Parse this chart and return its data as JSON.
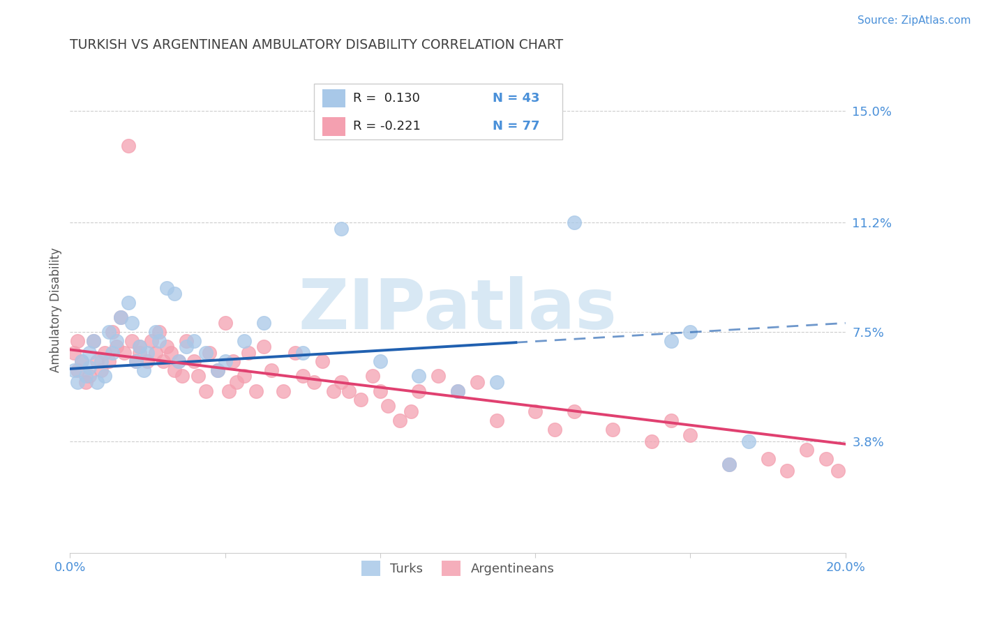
{
  "title": "TURKISH VS ARGENTINEAN AMBULATORY DISABILITY CORRELATION CHART",
  "source_text": "Source: ZipAtlas.com",
  "ylabel": "Ambulatory Disability",
  "legend_R_turks": "R =  0.130",
  "legend_R_arg": "R = -0.221",
  "legend_N_turks": "N = 43",
  "legend_N_arg": "N = 77",
  "legend_label_turks": "Turks",
  "legend_label_arg": "Argentineans",
  "xlim": [
    0.0,
    0.2
  ],
  "ylim": [
    0.0,
    0.165
  ],
  "yticks": [
    0.038,
    0.075,
    0.112,
    0.15
  ],
  "ytick_labels": [
    "3.8%",
    "7.5%",
    "11.2%",
    "15.0%"
  ],
  "xticks": [
    0.0,
    0.04,
    0.08,
    0.12,
    0.16,
    0.2
  ],
  "xtick_labels": [
    "0.0%",
    "",
    "",
    "",
    "",
    "20.0%"
  ],
  "color_turks": "#A8C8E8",
  "color_argentineans": "#F4A0B0",
  "color_trend_turks": "#2060B0",
  "color_trend_arg": "#E04070",
  "background_color": "#ffffff",
  "grid_color": "#cccccc",
  "axis_color": "#4a90d9",
  "title_color": "#404040",
  "watermark_text": "ZIPatlas",
  "watermark_color": "#d8e8f4",
  "trend_blue_x0": 0.0,
  "trend_blue_x1": 0.2,
  "trend_blue_y0": 0.0625,
  "trend_blue_y1": 0.078,
  "trend_blue_solid_end": 0.115,
  "trend_pink_x0": 0.0,
  "trend_pink_x1": 0.2,
  "trend_pink_y0": 0.069,
  "trend_pink_y1": 0.037,
  "turks_x": [
    0.001,
    0.002,
    0.003,
    0.004,
    0.005,
    0.005,
    0.006,
    0.007,
    0.008,
    0.009,
    0.01,
    0.011,
    0.012,
    0.013,
    0.015,
    0.016,
    0.017,
    0.018,
    0.019,
    0.02,
    0.022,
    0.023,
    0.025,
    0.027,
    0.028,
    0.03,
    0.032,
    0.035,
    0.038,
    0.04,
    0.045,
    0.05,
    0.06,
    0.07,
    0.08,
    0.09,
    0.1,
    0.11,
    0.13,
    0.155,
    0.16,
    0.17,
    0.175
  ],
  "turks_y": [
    0.062,
    0.058,
    0.065,
    0.06,
    0.063,
    0.068,
    0.072,
    0.058,
    0.065,
    0.06,
    0.075,
    0.068,
    0.072,
    0.08,
    0.085,
    0.078,
    0.065,
    0.07,
    0.062,
    0.068,
    0.075,
    0.072,
    0.09,
    0.088,
    0.065,
    0.07,
    0.072,
    0.068,
    0.062,
    0.065,
    0.072,
    0.078,
    0.068,
    0.11,
    0.065,
    0.06,
    0.055,
    0.058,
    0.112,
    0.072,
    0.075,
    0.03,
    0.038
  ],
  "arg_x": [
    0.001,
    0.002,
    0.002,
    0.003,
    0.004,
    0.005,
    0.006,
    0.007,
    0.008,
    0.009,
    0.01,
    0.011,
    0.012,
    0.013,
    0.014,
    0.015,
    0.016,
    0.017,
    0.018,
    0.018,
    0.02,
    0.021,
    0.022,
    0.023,
    0.024,
    0.025,
    0.026,
    0.027,
    0.028,
    0.029,
    0.03,
    0.032,
    0.033,
    0.035,
    0.036,
    0.038,
    0.04,
    0.041,
    0.042,
    0.043,
    0.045,
    0.046,
    0.048,
    0.05,
    0.052,
    0.055,
    0.058,
    0.06,
    0.063,
    0.065,
    0.068,
    0.07,
    0.072,
    0.075,
    0.078,
    0.08,
    0.082,
    0.085,
    0.088,
    0.09,
    0.095,
    0.1,
    0.105,
    0.11,
    0.12,
    0.125,
    0.13,
    0.14,
    0.15,
    0.155,
    0.16,
    0.17,
    0.18,
    0.185,
    0.19,
    0.195,
    0.198
  ],
  "arg_y": [
    0.068,
    0.062,
    0.072,
    0.065,
    0.058,
    0.06,
    0.072,
    0.065,
    0.062,
    0.068,
    0.065,
    0.075,
    0.07,
    0.08,
    0.068,
    0.138,
    0.072,
    0.065,
    0.07,
    0.068,
    0.065,
    0.072,
    0.068,
    0.075,
    0.065,
    0.07,
    0.068,
    0.062,
    0.065,
    0.06,
    0.072,
    0.065,
    0.06,
    0.055,
    0.068,
    0.062,
    0.078,
    0.055,
    0.065,
    0.058,
    0.06,
    0.068,
    0.055,
    0.07,
    0.062,
    0.055,
    0.068,
    0.06,
    0.058,
    0.065,
    0.055,
    0.058,
    0.055,
    0.052,
    0.06,
    0.055,
    0.05,
    0.045,
    0.048,
    0.055,
    0.06,
    0.055,
    0.058,
    0.045,
    0.048,
    0.042,
    0.048,
    0.042,
    0.038,
    0.045,
    0.04,
    0.03,
    0.032,
    0.028,
    0.035,
    0.032,
    0.028
  ]
}
